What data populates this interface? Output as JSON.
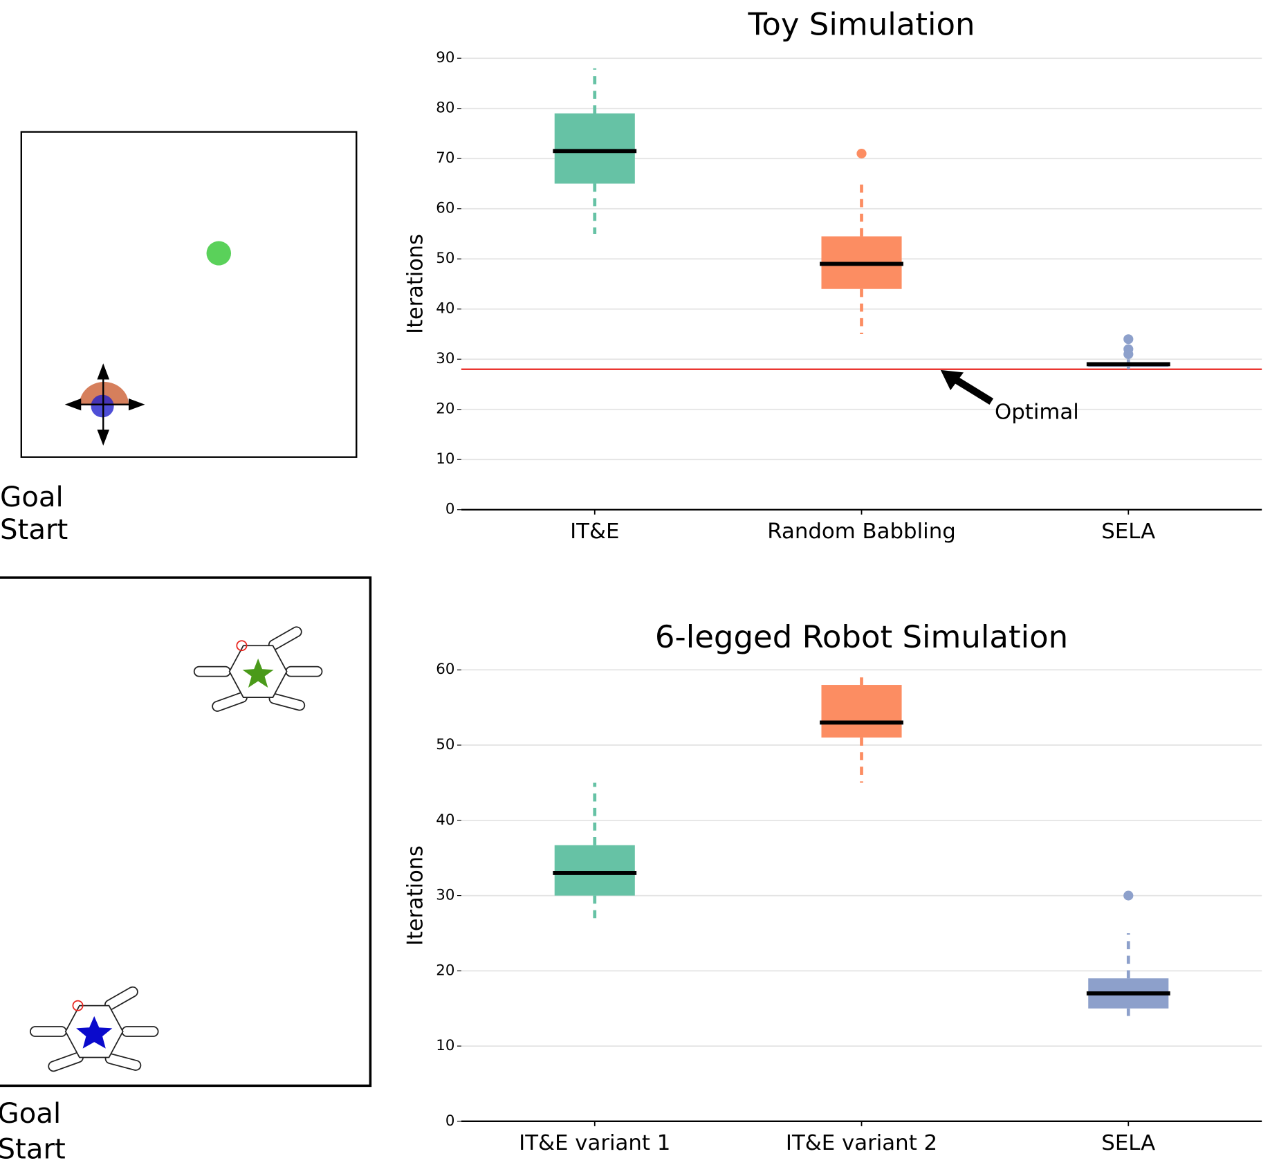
{
  "chart_data": [
    {
      "type": "box",
      "title": "Toy Simulation",
      "ylabel": "Iterations",
      "categories": [
        "IT&E",
        "Random Babbling",
        "SELA"
      ],
      "boxes": [
        {
          "whislo": 55,
          "q1": 65,
          "med": 71.5,
          "q3": 79,
          "whishi": 88,
          "color": "#66c2a5"
        },
        {
          "whislo": 35,
          "q1": 44,
          "med": 49,
          "q3": 54.5,
          "whishi": 65,
          "fliers": [
            71
          ],
          "color": "#fc8d62"
        },
        {
          "whislo": 28,
          "q1": 28.5,
          "med": 29,
          "q3": 29.3,
          "whishi": 30,
          "fliers": [
            31,
            32,
            34
          ],
          "color": "#8da0cb"
        }
      ],
      "ylim": [
        0,
        90
      ],
      "yticks": [
        0,
        10,
        20,
        30,
        40,
        50,
        60,
        70,
        80,
        90
      ],
      "grid": true,
      "hline": {
        "value": 28,
        "color": "#e8251f",
        "label": "Optimal"
      }
    },
    {
      "type": "box",
      "title": "6-legged Robot Simulation",
      "ylabel": "Iterations",
      "categories": [
        "IT&E variant 1",
        "IT&E variant 2",
        "SELA"
      ],
      "boxes": [
        {
          "whislo": 27,
          "q1": 30,
          "med": 33,
          "q3": 36.7,
          "whishi": 45,
          "color": "#66c2a5"
        },
        {
          "whislo": 45,
          "q1": 51,
          "med": 53,
          "q3": 58,
          "whishi": 59,
          "color": "#fc8d62"
        },
        {
          "whislo": 14,
          "q1": 15,
          "med": 17,
          "q3": 19,
          "whishi": 25,
          "fliers": [
            30
          ],
          "color": "#8da0cb"
        }
      ],
      "ylim": [
        0,
        60
      ],
      "yticks": [
        0,
        10,
        20,
        30,
        40,
        50,
        60
      ],
      "grid": true
    }
  ],
  "diagrams": [
    {
      "labels": [
        "Goal",
        "Start"
      ]
    },
    {
      "labels": [
        "Goal",
        "Start"
      ]
    }
  ]
}
